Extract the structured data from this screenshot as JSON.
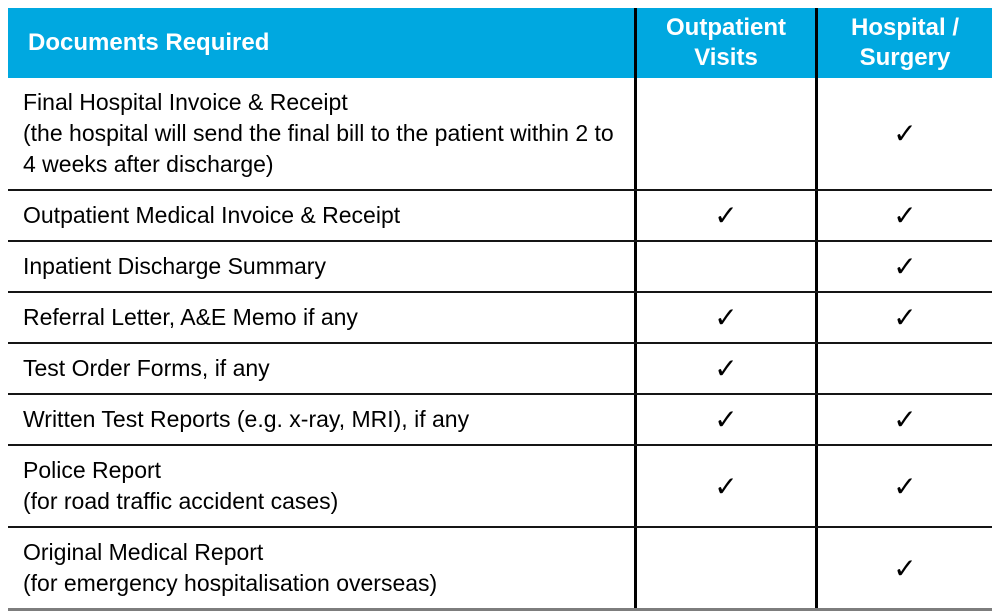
{
  "table": {
    "columns": [
      {
        "label": "Documents Required"
      },
      {
        "label": "Outpatient Visits"
      },
      {
        "label": "Hospital / Surgery"
      }
    ],
    "checkmark_glyph": "✓",
    "colors": {
      "header_bg": "#00A8E0",
      "header_text": "#FFFFFF",
      "body_text": "#000000",
      "grid_line": "#151515",
      "column_line": "#000000",
      "bottom_border": "#7D7D7D"
    },
    "rows": [
      {
        "title": "Final Hospital Invoice & Receipt",
        "note": "(the hospital will send the final bill to the patient within 2 to 4 weeks after discharge)",
        "outpatient_visits": false,
        "hospital_surgery": true
      },
      {
        "title": "Outpatient Medical Invoice & Receipt",
        "note": "",
        "outpatient_visits": true,
        "hospital_surgery": true
      },
      {
        "title": "Inpatient Discharge Summary",
        "note": "",
        "outpatient_visits": false,
        "hospital_surgery": true
      },
      {
        "title": "Referral Letter, A&E Memo if any",
        "note": "",
        "outpatient_visits": true,
        "hospital_surgery": true
      },
      {
        "title": "Test Order Forms, if any",
        "note": "",
        "outpatient_visits": true,
        "hospital_surgery": false
      },
      {
        "title": "Written Test Reports (e.g. x-ray, MRI), if any",
        "note": "",
        "outpatient_visits": true,
        "hospital_surgery": true
      },
      {
        "title": "Police Report",
        "note": "(for road traffic accident cases)",
        "outpatient_visits": true,
        "hospital_surgery": true
      },
      {
        "title": "Original Medical Report",
        "note": "(for emergency hospitalisation overseas)",
        "outpatient_visits": false,
        "hospital_surgery": true
      }
    ]
  }
}
